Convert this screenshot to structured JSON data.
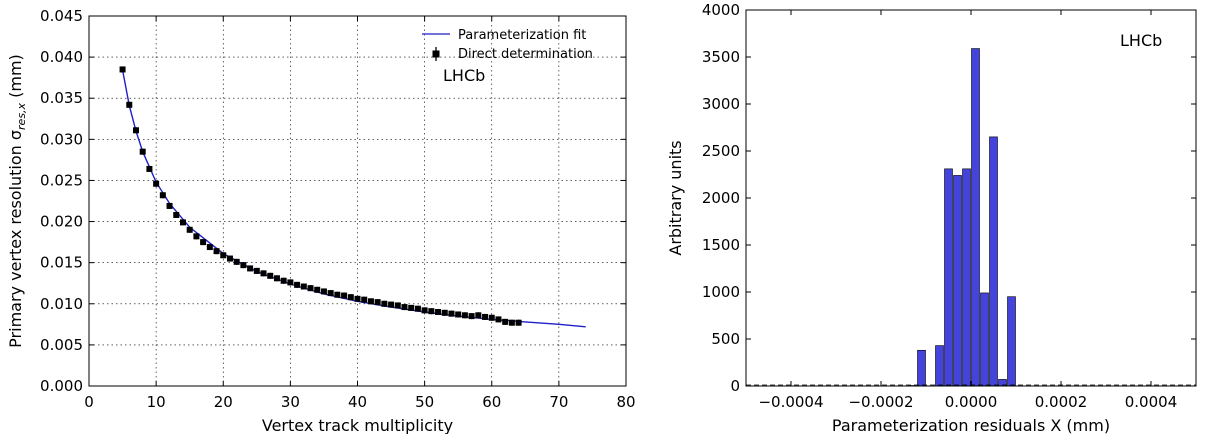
{
  "chart_data": [
    {
      "type": "line",
      "xlabel": "Vertex track multiplicity",
      "ylabel": "Primary vertex resolution σ",
      "ylabel_subscript": "res,x",
      "ylabel_unit": " (mm)",
      "xlim": [
        0,
        80
      ],
      "ylim": [
        0,
        0.045
      ],
      "x_ticks": [
        "0",
        "10",
        "20",
        "30",
        "40",
        "50",
        "60",
        "70",
        "80"
      ],
      "y_ticks": [
        "0.000",
        "0.005",
        "0.010",
        "0.015",
        "0.020",
        "0.025",
        "0.030",
        "0.035",
        "0.040",
        "0.045"
      ],
      "grid": true,
      "legend_position": "top-right",
      "annotation": "LHCb",
      "colors": {
        "fit": "#1f1fcc",
        "points": "#000000"
      },
      "series": [
        {
          "name": "Parameterization fit",
          "kind": "line",
          "x": [
            5,
            6,
            7,
            8,
            10,
            12,
            15,
            20,
            25,
            30,
            35,
            40,
            45,
            50,
            55,
            60,
            65,
            70,
            74
          ],
          "y": [
            0.0384,
            0.0341,
            0.031,
            0.0285,
            0.0248,
            0.0222,
            0.0193,
            0.0161,
            0.0139,
            0.0124,
            0.0112,
            0.0103,
            0.0096,
            0.009,
            0.0085,
            0.0081,
            0.0078,
            0.0075,
            0.0072
          ]
        },
        {
          "name": "Direct determination",
          "kind": "errorbar",
          "x": [
            5,
            6,
            7,
            8,
            9,
            10,
            11,
            12,
            13,
            14,
            15,
            16,
            17,
            18,
            19,
            20,
            21,
            22,
            23,
            24,
            25,
            26,
            27,
            28,
            29,
            30,
            31,
            32,
            33,
            34,
            35,
            36,
            37,
            38,
            39,
            40,
            41,
            42,
            43,
            44,
            45,
            46,
            47,
            48,
            49,
            50,
            51,
            52,
            53,
            54,
            55,
            56,
            57,
            58,
            59,
            60,
            61,
            62,
            63,
            64
          ],
          "y": [
            0.0385,
            0.0342,
            0.0311,
            0.0285,
            0.0264,
            0.0246,
            0.0232,
            0.0219,
            0.0208,
            0.0199,
            0.019,
            0.0182,
            0.0175,
            0.0169,
            0.0164,
            0.0159,
            0.0155,
            0.0151,
            0.0147,
            0.0143,
            0.014,
            0.0137,
            0.0134,
            0.0131,
            0.0128,
            0.0126,
            0.0123,
            0.0121,
            0.0119,
            0.0117,
            0.0115,
            0.0113,
            0.0111,
            0.011,
            0.0108,
            0.0106,
            0.0105,
            0.0103,
            0.0102,
            0.01,
            0.0099,
            0.0098,
            0.0096,
            0.0095,
            0.0094,
            0.0092,
            0.0091,
            0.009,
            0.0089,
            0.0088,
            0.0087,
            0.0086,
            0.0085,
            0.0086,
            0.0084,
            0.0083,
            0.0081,
            0.0078,
            0.0077,
            0.0077
          ],
          "yerr": 0.0003
        }
      ]
    },
    {
      "type": "bar",
      "xlabel": "Parameterization residuals X (mm)",
      "ylabel": "Arbitrary units",
      "xlim": [
        -0.0005,
        0.0005
      ],
      "ylim": [
        0,
        4000
      ],
      "x_ticks": [
        "−0.0004",
        "−0.0002",
        "0.0000",
        "0.0002",
        "0.0004"
      ],
      "y_ticks": [
        "0",
        "500",
        "1000",
        "1500",
        "2000",
        "2500",
        "3000",
        "3500",
        "4000"
      ],
      "grid": false,
      "annotation": "LHCb",
      "colors": {
        "bar": "#4444dd",
        "edge": "#000000"
      },
      "bin_width": 2e-05,
      "bin_edges_start": -0.00014,
      "values": [
        5,
        380,
        0,
        430,
        2310,
        2240,
        2310,
        3590,
        990,
        2650,
        70,
        950
      ],
      "bins": [
        {
          "start": -0.00014,
          "value": 5
        },
        {
          "start": -0.00012,
          "value": 380
        },
        {
          "start": -0.0001,
          "value": 0
        },
        {
          "start": -8e-05,
          "value": 430
        },
        {
          "start": -6e-05,
          "value": 2310
        },
        {
          "start": -4e-05,
          "value": 2240
        },
        {
          "start": -2e-05,
          "value": 2310
        },
        {
          "start": 0.0,
          "value": 3590
        },
        {
          "start": 2e-05,
          "value": 990
        },
        {
          "start": 4e-05,
          "value": 2650
        },
        {
          "start": 6e-05,
          "value": 70
        },
        {
          "start": 8e-05,
          "value": 950
        }
      ]
    }
  ]
}
